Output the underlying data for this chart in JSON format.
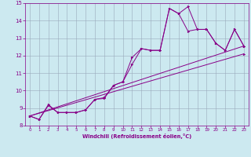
{
  "xlabel": "Windchill (Refroidissement éolien,°C)",
  "xlim": [
    -0.5,
    23.5
  ],
  "ylim": [
    8,
    15
  ],
  "xticks": [
    0,
    1,
    2,
    3,
    4,
    5,
    6,
    7,
    8,
    9,
    10,
    11,
    12,
    13,
    14,
    15,
    16,
    17,
    18,
    19,
    20,
    21,
    22,
    23
  ],
  "yticks": [
    8,
    9,
    10,
    11,
    12,
    13,
    14,
    15
  ],
  "bg_color": "#cce9f0",
  "line_color": "#880088",
  "grid_color": "#99aabb",
  "line1_x": [
    0,
    1,
    2,
    3,
    4,
    5,
    6,
    7,
    8,
    9,
    10,
    11,
    12,
    13,
    14,
    15,
    16,
    17,
    18,
    19,
    20,
    21,
    22,
    23
  ],
  "line1_y": [
    8.55,
    8.35,
    9.2,
    8.75,
    8.75,
    8.75,
    8.9,
    9.5,
    9.6,
    10.3,
    10.5,
    11.9,
    12.4,
    12.3,
    12.3,
    14.7,
    14.4,
    14.8,
    13.5,
    13.5,
    12.7,
    12.3,
    13.5,
    12.55
  ],
  "line2_x": [
    0,
    1,
    2,
    3,
    4,
    5,
    6,
    7,
    8,
    9,
    10,
    11,
    12,
    13,
    14,
    15,
    16,
    17,
    18,
    19,
    20,
    21,
    22,
    23
  ],
  "line2_y": [
    8.55,
    8.35,
    9.15,
    8.75,
    8.75,
    8.75,
    8.9,
    9.5,
    9.55,
    10.3,
    10.5,
    11.5,
    12.4,
    12.3,
    12.3,
    14.7,
    14.4,
    13.4,
    13.5,
    13.5,
    12.7,
    12.3,
    13.5,
    12.55
  ],
  "line3_x": [
    0,
    23
  ],
  "line3_y": [
    8.55,
    12.55
  ],
  "line4_x": [
    0,
    23
  ],
  "line4_y": [
    8.55,
    12.1
  ]
}
